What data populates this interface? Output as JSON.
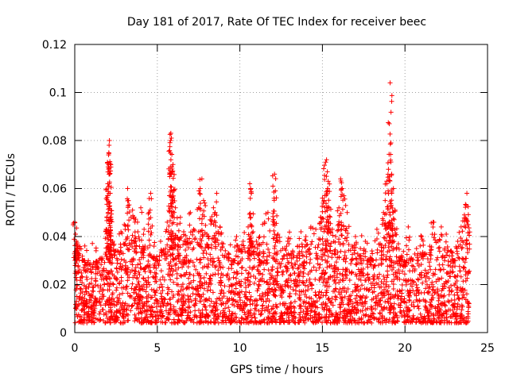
{
  "chart_data": {
    "type": "scatter",
    "title": "Day 181 of 2017, Rate Of TEC Index for receiver beec",
    "xlabel": "GPS time / hours",
    "ylabel": "ROTI / TECUs",
    "xlim": [
      0,
      25
    ],
    "ylim": [
      0,
      0.12
    ],
    "xticks": [
      0,
      5,
      10,
      15,
      20,
      25
    ],
    "xtick_labels": [
      "0",
      "5",
      "10",
      "15",
      "20",
      "25"
    ],
    "yticks": [
      0,
      0.02,
      0.04,
      0.06,
      0.08,
      0.1,
      0.12
    ],
    "ytick_labels": [
      "0",
      "0.02",
      "0.04",
      "0.06",
      "0.08",
      "0.1",
      "0.12"
    ],
    "grid": true,
    "marker": "plus",
    "color": "#ff0000",
    "series": [
      {
        "name": "ROTI",
        "points": [
          [
            0.0,
            0.046
          ],
          [
            0.05,
            0.041
          ],
          [
            0.1,
            0.038
          ],
          [
            0.15,
            0.033
          ],
          [
            0.2,
            0.036
          ],
          [
            0.3,
            0.035
          ],
          [
            0.5,
            0.03
          ],
          [
            0.7,
            0.028
          ],
          [
            1.0,
            0.025
          ],
          [
            1.3,
            0.029
          ],
          [
            1.6,
            0.031
          ],
          [
            1.8,
            0.02
          ],
          [
            1.9,
            0.043
          ],
          [
            2.0,
            0.062
          ],
          [
            2.02,
            0.069
          ],
          [
            2.05,
            0.07
          ],
          [
            2.05,
            0.074
          ],
          [
            2.08,
            0.078
          ],
          [
            2.1,
            0.08
          ],
          [
            2.12,
            0.066
          ],
          [
            2.15,
            0.058
          ],
          [
            2.2,
            0.047
          ],
          [
            2.3,
            0.038
          ],
          [
            2.5,
            0.034
          ],
          [
            2.8,
            0.042
          ],
          [
            3.0,
            0.045
          ],
          [
            3.2,
            0.06
          ],
          [
            3.25,
            0.055
          ],
          [
            3.5,
            0.051
          ],
          [
            3.6,
            0.048
          ],
          [
            3.8,
            0.046
          ],
          [
            4.0,
            0.052
          ],
          [
            4.2,
            0.043
          ],
          [
            4.5,
            0.05
          ],
          [
            4.6,
            0.058
          ],
          [
            4.8,
            0.036
          ],
          [
            5.0,
            0.03
          ],
          [
            5.2,
            0.038
          ],
          [
            5.5,
            0.035
          ],
          [
            5.6,
            0.046
          ],
          [
            5.8,
            0.08
          ],
          [
            5.82,
            0.083
          ],
          [
            5.85,
            0.081
          ],
          [
            5.88,
            0.069
          ],
          [
            5.9,
            0.067
          ],
          [
            5.95,
            0.07
          ],
          [
            6.0,
            0.059
          ],
          [
            6.1,
            0.052
          ],
          [
            6.2,
            0.045
          ],
          [
            6.4,
            0.048
          ],
          [
            6.6,
            0.042
          ],
          [
            6.8,
            0.039
          ],
          [
            7.0,
            0.05
          ],
          [
            7.2,
            0.043
          ],
          [
            7.5,
            0.052
          ],
          [
            7.6,
            0.06
          ],
          [
            7.7,
            0.064
          ],
          [
            7.8,
            0.055
          ],
          [
            8.0,
            0.041
          ],
          [
            8.2,
            0.047
          ],
          [
            8.4,
            0.052
          ],
          [
            8.5,
            0.05
          ],
          [
            8.6,
            0.058
          ],
          [
            8.8,
            0.044
          ],
          [
            9.0,
            0.037
          ],
          [
            9.3,
            0.033
          ],
          [
            9.6,
            0.03
          ],
          [
            9.8,
            0.04
          ],
          [
            10.0,
            0.035
          ],
          [
            10.2,
            0.038
          ],
          [
            10.5,
            0.044
          ],
          [
            10.6,
            0.062
          ],
          [
            10.65,
            0.06
          ],
          [
            10.7,
            0.058
          ],
          [
            10.8,
            0.042
          ],
          [
            11.0,
            0.038
          ],
          [
            11.2,
            0.04
          ],
          [
            11.5,
            0.046
          ],
          [
            11.7,
            0.05
          ],
          [
            12.0,
            0.061
          ],
          [
            12.1,
            0.066
          ],
          [
            12.15,
            0.059
          ],
          [
            12.3,
            0.041
          ],
          [
            12.6,
            0.035
          ],
          [
            12.9,
            0.038
          ],
          [
            13.2,
            0.034
          ],
          [
            13.5,
            0.036
          ],
          [
            13.7,
            0.042
          ],
          [
            14.0,
            0.04
          ],
          [
            14.3,
            0.044
          ],
          [
            14.6,
            0.043
          ],
          [
            14.9,
            0.048
          ],
          [
            15.0,
            0.056
          ],
          [
            15.1,
            0.055
          ],
          [
            15.2,
            0.071
          ],
          [
            15.25,
            0.072
          ],
          [
            15.3,
            0.067
          ],
          [
            15.35,
            0.063
          ],
          [
            15.4,
            0.052
          ],
          [
            15.6,
            0.043
          ],
          [
            15.8,
            0.04
          ],
          [
            16.0,
            0.052
          ],
          [
            16.1,
            0.064
          ],
          [
            16.2,
            0.06
          ],
          [
            16.3,
            0.057
          ],
          [
            16.5,
            0.05
          ],
          [
            16.8,
            0.036
          ],
          [
            17.0,
            0.04
          ],
          [
            17.3,
            0.035
          ],
          [
            17.6,
            0.038
          ],
          [
            17.8,
            0.03
          ],
          [
            18.0,
            0.034
          ],
          [
            18.3,
            0.043
          ],
          [
            18.5,
            0.037
          ],
          [
            18.7,
            0.05
          ],
          [
            18.8,
            0.055
          ],
          [
            18.9,
            0.062
          ],
          [
            19.0,
            0.068
          ],
          [
            19.05,
            0.087
          ],
          [
            19.1,
            0.104
          ],
          [
            19.15,
            0.079
          ],
          [
            19.2,
            0.058
          ],
          [
            19.3,
            0.06
          ],
          [
            19.4,
            0.051
          ],
          [
            19.6,
            0.037
          ],
          [
            19.8,
            0.032
          ],
          [
            20.0,
            0.028
          ],
          [
            20.2,
            0.044
          ],
          [
            20.4,
            0.031
          ],
          [
            20.7,
            0.035
          ],
          [
            21.0,
            0.04
          ],
          [
            21.2,
            0.033
          ],
          [
            21.5,
            0.036
          ],
          [
            21.7,
            0.046
          ],
          [
            22.0,
            0.038
          ],
          [
            22.2,
            0.044
          ],
          [
            22.5,
            0.041
          ],
          [
            22.8,
            0.034
          ],
          [
            23.0,
            0.03
          ],
          [
            23.2,
            0.038
          ],
          [
            23.4,
            0.044
          ],
          [
            23.6,
            0.049
          ],
          [
            23.7,
            0.053
          ],
          [
            23.75,
            0.058
          ],
          [
            23.8,
            0.045
          ]
        ],
        "baseline_band": {
          "x_range": [
            0,
            23.9
          ],
          "typical_min": 0.004,
          "typical_max": 0.03,
          "note_sampling": "dense continuous scatter of points between roughly 0.005 and 0.03"
        }
      }
    ]
  }
}
